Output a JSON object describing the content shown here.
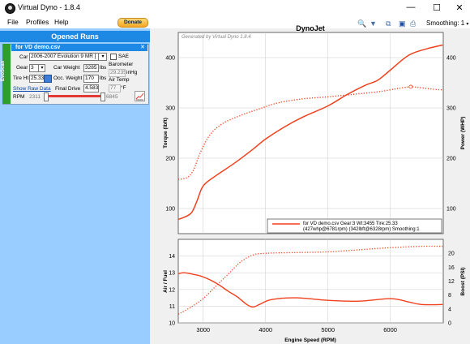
{
  "window": {
    "title": "Virtual Dyno - 1.8.4",
    "controls": {
      "minimize": "—",
      "maximize": "☐",
      "close": "✕"
    }
  },
  "menu": {
    "file": "File",
    "profiles": "Profiles",
    "help": "Help",
    "donate": "Donate"
  },
  "left_panel": {
    "header": "Opened Runs",
    "run": {
      "title": "for VD demo.csv",
      "strip_label": "EvoScan",
      "car_label": "Car",
      "car_value": "2006-2007 Evolution 9 MR [",
      "sae_label": "SAE",
      "gear_label": "Gear",
      "gear_value": "3",
      "car_weight_label": "Car Weight",
      "car_weight_value": "3285",
      "car_weight_unit": "lbs",
      "barometer_label": "Barometer",
      "barometer_value": "29.235",
      "barometer_unit": "inHg",
      "tire_label": "Tire Ht",
      "tire_value": "25.33",
      "occ_weight_label": "Occ. Weight",
      "occ_weight_value": "170",
      "occ_weight_unit": "lbs",
      "air_temp_label": "Air Temp",
      "air_temp_value": "77",
      "air_temp_unit": "°F",
      "show_raw_label": "Show Raw Data",
      "final_drive_label": "Final Drive",
      "final_drive_value": "4.583",
      "rpm_label": "RPM",
      "rpm_min": "2311",
      "rpm_max": "6845"
    }
  },
  "toolbar": {
    "smoothing_label": "Smoothing: 1"
  },
  "chart_data": [
    {
      "type": "line",
      "title": "DynoJet",
      "watermark": "Generated by Virtual Dyno 1.8.4",
      "ylabel_left": "Torque (lbft)",
      "ylabel_right": "Power (WHP)",
      "xlim": [
        2600,
        6850
      ],
      "ylim": [
        50,
        450
      ],
      "yticks": [
        100,
        200,
        300,
        400
      ],
      "legend": {
        "placement": "bottom-right",
        "line1": "for VD demo.csv Gear:3 Wt:3455 Tire:25.33",
        "line2": "(427whp@6781rpm) (342lbft@6328rpm) Smoothing:1"
      },
      "series": [
        {
          "role": "power",
          "style": "solid",
          "color": "#f0401c",
          "x": [
            2600,
            2800,
            2900,
            3000,
            3200,
            3500,
            3800,
            4000,
            4300,
            4600,
            5000,
            5300,
            5600,
            5800,
            6000,
            6300,
            6600,
            6840
          ],
          "y": [
            78,
            90,
            115,
            145,
            165,
            190,
            218,
            238,
            262,
            282,
            304,
            326,
            345,
            355,
            375,
            405,
            418,
            425
          ]
        },
        {
          "role": "torque",
          "style": "dotted",
          "color": "#f0401c",
          "x": [
            2600,
            2750,
            2850,
            2950,
            3100,
            3300,
            3600,
            3900,
            4200,
            4600,
            5000,
            5400,
            5800,
            6100,
            6328,
            6500,
            6700,
            6840
          ],
          "y": [
            158,
            162,
            178,
            210,
            245,
            268,
            285,
            298,
            310,
            318,
            322,
            327,
            332,
            338,
            342,
            340,
            337,
            336
          ]
        }
      ]
    },
    {
      "type": "line",
      "xlabel": "Engine Speed (RPM)",
      "ylabel_left": "Air / Fuel",
      "ylabel_right": "Boost (PSI)",
      "xlim": [
        2600,
        6850
      ],
      "xticks": [
        3000,
        4000,
        5000,
        6000
      ],
      "ylim_left": [
        10,
        15
      ],
      "yticks_left": [
        10,
        11,
        12,
        13,
        14
      ],
      "ylim_right": [
        0,
        24
      ],
      "yticks_right": [
        0,
        4,
        8,
        12,
        16,
        20
      ],
      "series": [
        {
          "role": "air_fuel",
          "style": "solid",
          "color": "#f0401c",
          "x": [
            2600,
            2700,
            2850,
            3000,
            3200,
            3400,
            3550,
            3700,
            3800,
            3900,
            4100,
            4500,
            5000,
            5500,
            6000,
            6300,
            6500,
            6840
          ],
          "y": [
            12.95,
            13.0,
            12.9,
            12.75,
            12.4,
            11.9,
            11.55,
            11.1,
            10.95,
            11.1,
            11.4,
            11.5,
            11.35,
            11.3,
            11.45,
            11.25,
            11.1,
            11.1
          ]
        },
        {
          "role": "boost",
          "style": "dotted",
          "color": "#f0401c",
          "x": [
            2600,
            2800,
            3000,
            3200,
            3400,
            3600,
            3800,
            4000,
            4500,
            5000,
            5500,
            6000,
            6500,
            6840
          ],
          "y": [
            2.5,
            4.5,
            7,
            10.5,
            14,
            17.5,
            19.5,
            20,
            20.2,
            20.4,
            21,
            21.6,
            22,
            22
          ]
        }
      ]
    }
  ]
}
